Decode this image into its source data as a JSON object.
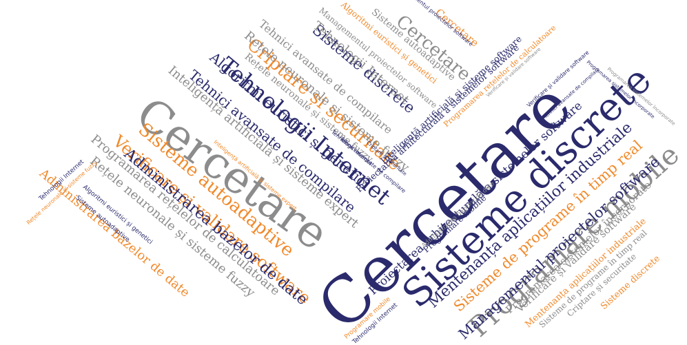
{
  "palette": {
    "navy": "#2a2a6c",
    "orange": "#f08a2c",
    "gray": "#8c8c8c"
  },
  "words": [
    {
      "text": "Cercetare",
      "color": "navy"
    },
    {
      "text": "Cercetare",
      "color": "gray"
    },
    {
      "text": "Sisteme discrete",
      "color": "navy"
    },
    {
      "text": "Tehnologii Internet",
      "color": "navy"
    },
    {
      "text": "Programare mobile",
      "color": "gray"
    },
    {
      "text": "Sisteme autoadaptive",
      "color": "orange"
    },
    {
      "text": "Criptare și securitate",
      "color": "orange"
    },
    {
      "text": "Verificare și validare software",
      "color": "orange"
    },
    {
      "text": "Administrarea bazelor de date",
      "color": "navy"
    },
    {
      "text": "Sisteme de programe în timp real",
      "color": "orange"
    },
    {
      "text": "Mentenanța aplicațiilor industriale",
      "color": "navy"
    },
    {
      "text": "Managementul proiectelor software",
      "color": "navy"
    },
    {
      "text": "Proiectarea arhitecturală a sistemelor software",
      "color": "navy"
    },
    {
      "text": "Algoritmi euristici și genetici",
      "color": "navy"
    },
    {
      "text": "Tehnici avansate de compilare",
      "color": "navy"
    },
    {
      "text": "Inteligență artificială și sisteme expert",
      "color": "gray"
    },
    {
      "text": "Rețele neuronale și sisteme fuzzy",
      "color": "gray"
    },
    {
      "text": "Administrarea bazelor de date",
      "color": "orange"
    },
    {
      "text": "Programarea rețelelor de calculatoare",
      "color": "gray"
    },
    {
      "text": "Rețele neuronale și sisteme fuzzy",
      "color": "gray"
    },
    {
      "text": "Sisteme discrete",
      "color": "navy"
    },
    {
      "text": "Cercetare",
      "color": "gray"
    },
    {
      "text": "Tehnologii Internet",
      "color": "gray"
    },
    {
      "text": "Sisteme autoadaptive",
      "color": "gray"
    },
    {
      "text": "Cercetare",
      "color": "orange"
    },
    {
      "text": "Algoritmi euristici și genetici",
      "color": "orange"
    },
    {
      "text": "Managementul proiectelor software",
      "color": "gray"
    },
    {
      "text": "Tehnici avansate de compilare",
      "color": "gray"
    },
    {
      "text": "Rețele neuronale și sisteme fuzzy",
      "color": "gray"
    },
    {
      "text": "Programarea sistemelor încorporate",
      "color": "gray"
    },
    {
      "text": "Verificare și validare software",
      "color": "gray"
    },
    {
      "text": "Mentenanța aplicațiilor industriale",
      "color": "orange"
    },
    {
      "text": "Sisteme de programe în timp real",
      "color": "gray"
    },
    {
      "text": "Criptare și securitate",
      "color": "gray"
    },
    {
      "text": "Sisteme discrete",
      "color": "orange"
    },
    {
      "text": "Inteligență artificială și sisteme software",
      "color": "navy"
    },
    {
      "text": "Proiectarea arhitecturală a sistemelor software",
      "color": "navy"
    },
    {
      "text": "Programarea rețelelor de calculatoare",
      "color": "orange"
    },
    {
      "text": "Administrarea bazelor de date",
      "color": "gray"
    },
    {
      "text": "Programare mobile",
      "color": "navy"
    },
    {
      "text": "Tehnologii Internet",
      "color": "navy"
    },
    {
      "text": "Algoritmi euristici și genetici",
      "color": "navy"
    },
    {
      "text": "Sisteme autoadaptive",
      "color": "navy"
    },
    {
      "text": "Rețele neuronale și sisteme fuzzy",
      "color": "orange"
    },
    {
      "text": "Tehnologii Internet",
      "color": "navy"
    },
    {
      "text": "Programare mobile",
      "color": "orange"
    },
    {
      "text": "Tehnologii Internet",
      "color": "navy"
    },
    {
      "text": "Tehnici avansate de compilare",
      "color": "navy"
    },
    {
      "text": "Criptare și securitate",
      "color": "navy"
    },
    {
      "text": "Verificare și validare software",
      "color": "navy"
    },
    {
      "text": "Inteligență artificială și sisteme expert",
      "color": "orange"
    },
    {
      "text": "Managementul proiectelor software",
      "color": "navy"
    },
    {
      "text": "Programarea sistemelor încorporate",
      "color": "navy"
    },
    {
      "text": "Tehnici avansate de compilare",
      "color": "navy"
    },
    {
      "text": "Verificare și validare software",
      "color": "gray"
    },
    {
      "text": "Programarea sistemelor încorporate",
      "color": "gray"
    }
  ]
}
